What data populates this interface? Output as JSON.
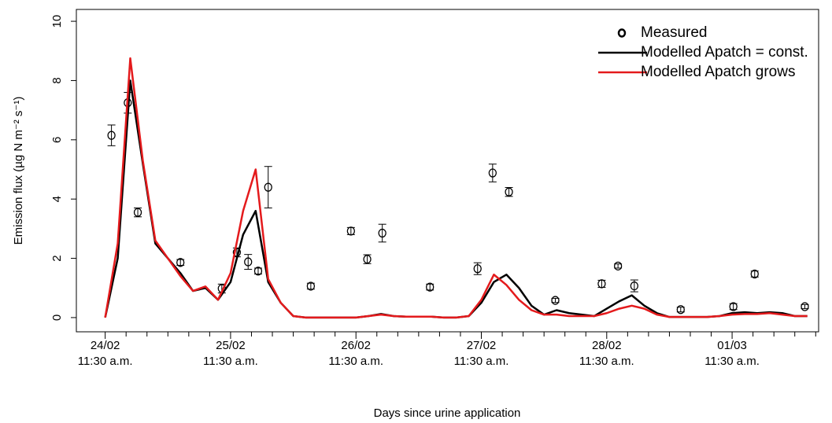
{
  "chart_data": {
    "type": "line",
    "x_label": "Days since urine application",
    "y_label": "Emission flux (µg N m⁻² s⁻¹)",
    "xlim": [
      -0.23,
      5.69
    ],
    "ylim": [
      -0.48,
      10.4
    ],
    "xticks": [
      {
        "value": 0,
        "label": "24/02\n11:30 a.m."
      },
      {
        "value": 1,
        "label": "25/02\n11:30 a.m."
      },
      {
        "value": 2,
        "label": "26/02\n11:30 a.m."
      },
      {
        "value": 3,
        "label": "27/02\n11:30 a.m."
      },
      {
        "value": 4,
        "label": "28/02\n11:30 a.m."
      },
      {
        "value": 5,
        "label": "01/03\n11:30 a.m."
      }
    ],
    "x_minor_divisions": 6,
    "yticks": [
      0,
      2,
      4,
      6,
      8,
      10
    ],
    "legend": "top-right",
    "series": [
      {
        "name": "Measured",
        "type": "scatter",
        "color": "#000000",
        "x": [
          0.05,
          0.18,
          0.26,
          0.6,
          0.93,
          1.05,
          1.14,
          1.22,
          1.3,
          1.64,
          1.96,
          2.09,
          2.21,
          2.59,
          2.97,
          3.09,
          3.22,
          3.59,
          3.96,
          4.09,
          4.22,
          4.59,
          5.01,
          5.18,
          5.58
        ],
        "values": [
          6.15,
          7.25,
          3.55,
          1.86,
          0.98,
          2.2,
          1.88,
          1.57,
          4.4,
          1.06,
          2.92,
          1.97,
          2.85,
          1.03,
          1.65,
          4.88,
          4.24,
          0.58,
          1.14,
          1.74,
          1.07,
          0.27,
          0.37,
          1.47,
          0.37
        ],
        "errors": [
          0.35,
          0.35,
          0.15,
          0.1,
          0.15,
          0.15,
          0.25,
          0.1,
          0.7,
          0.1,
          0.12,
          0.15,
          0.3,
          0.1,
          0.2,
          0.3,
          0.15,
          0.07,
          0.12,
          0.07,
          0.2,
          0.08,
          0.1,
          0.1,
          0.07
        ]
      },
      {
        "name": "Modelled Apatch = const.",
        "type": "line",
        "color": "#000000",
        "x": [
          0,
          0.1,
          0.2,
          0.3,
          0.4,
          0.5,
          0.6,
          0.7,
          0.8,
          0.9,
          1,
          1.1,
          1.2,
          1.3,
          1.4,
          1.5,
          1.6,
          1.7,
          1.8,
          1.9,
          2,
          2.1,
          2.2,
          2.3,
          2.4,
          2.5,
          2.6,
          2.7,
          2.8,
          2.9,
          3,
          3.1,
          3.2,
          3.3,
          3.4,
          3.5,
          3.6,
          3.7,
          3.8,
          3.9,
          4,
          4.1,
          4.2,
          4.3,
          4.4,
          4.5,
          4.6,
          4.7,
          4.8,
          4.9,
          5,
          5.1,
          5.2,
          5.3,
          5.4,
          5.5,
          5.6
        ],
        "values": [
          0,
          2.0,
          8.0,
          5.2,
          2.5,
          2.0,
          1.5,
          0.9,
          1.0,
          0.6,
          1.2,
          2.8,
          3.6,
          1.2,
          0.5,
          0.05,
          0,
          0,
          0,
          0,
          0,
          0.05,
          0.12,
          0.05,
          0.03,
          0.03,
          0.03,
          0,
          0,
          0.05,
          0.5,
          1.2,
          1.45,
          1.0,
          0.4,
          0.1,
          0.25,
          0.15,
          0.1,
          0.05,
          0.3,
          0.55,
          0.75,
          0.4,
          0.15,
          0.02,
          0.02,
          0.02,
          0.02,
          0.05,
          0.15,
          0.18,
          0.15,
          0.18,
          0.15,
          0.05,
          0.05
        ]
      },
      {
        "name": "Modelled Apatch grows",
        "type": "line",
        "color": "#e41a1c",
        "x": [
          0,
          0.1,
          0.2,
          0.3,
          0.4,
          0.5,
          0.6,
          0.7,
          0.8,
          0.9,
          1,
          1.1,
          1.2,
          1.3,
          1.4,
          1.5,
          1.6,
          1.7,
          1.8,
          1.9,
          2,
          2.1,
          2.2,
          2.3,
          2.4,
          2.5,
          2.6,
          2.7,
          2.8,
          2.9,
          3,
          3.1,
          3.2,
          3.3,
          3.4,
          3.5,
          3.6,
          3.7,
          3.8,
          3.9,
          4,
          4.1,
          4.2,
          4.3,
          4.4,
          4.5,
          4.6,
          4.7,
          4.8,
          4.9,
          5,
          5.1,
          5.2,
          5.3,
          5.4,
          5.5,
          5.6
        ],
        "values": [
          0,
          2.5,
          8.75,
          5.3,
          2.6,
          2.0,
          1.4,
          0.9,
          1.05,
          0.6,
          1.5,
          3.6,
          5.0,
          1.3,
          0.5,
          0.05,
          0,
          0,
          0,
          0,
          0,
          0.05,
          0.1,
          0.05,
          0.03,
          0.03,
          0.03,
          0,
          0,
          0.05,
          0.6,
          1.45,
          1.1,
          0.6,
          0.25,
          0.1,
          0.1,
          0.05,
          0.05,
          0.05,
          0.15,
          0.3,
          0.4,
          0.3,
          0.1,
          0.02,
          0.02,
          0.02,
          0.02,
          0.05,
          0.1,
          0.12,
          0.12,
          0.15,
          0.1,
          0.05,
          0.05
        ]
      }
    ]
  }
}
